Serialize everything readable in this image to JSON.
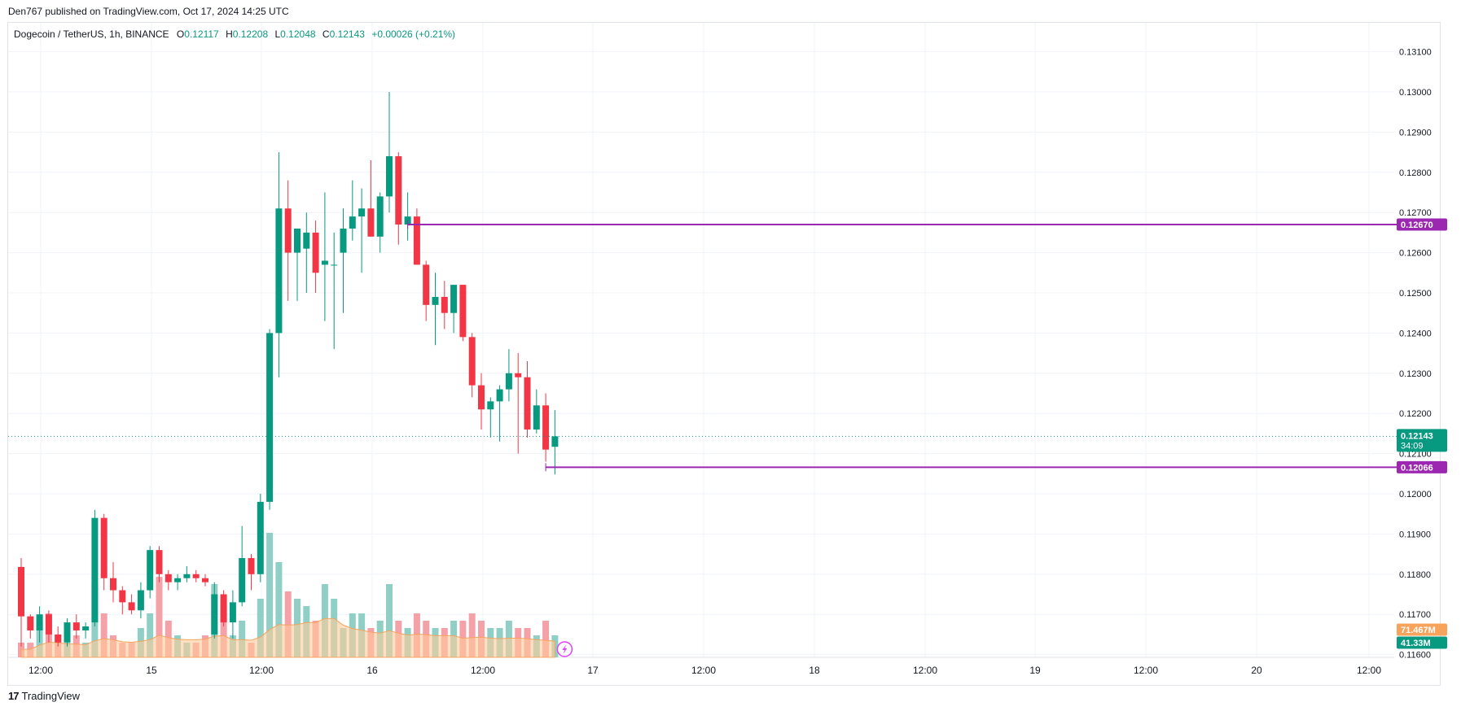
{
  "header": {
    "publisher": "Den767 published on TradingView.com, Oct 17, 2024 14:25 UTC"
  },
  "legend": {
    "symbol": "Dogecoin / TetherUS, 1h, BINANCE",
    "open_label": "O",
    "open": "0.12117",
    "high_label": "H",
    "high": "0.12208",
    "low_label": "L",
    "low": "0.12048",
    "close_label": "C",
    "close": "0.12143",
    "change": "+0.00026 (+0.21%)"
  },
  "footer": {
    "logo_glyph": "17",
    "brand": "TradingView"
  },
  "price_tags": {
    "last_price": "0.12143",
    "countdown": "34:09",
    "level_high": "0.12670",
    "level_low": "0.12066",
    "volume_ma": "71.467M",
    "volume": "41.33M"
  },
  "colors": {
    "up": "#089981",
    "down": "#f23645",
    "up_volume": "#8fcfc5",
    "down_volume": "#f5a1a8",
    "level_line": "#9c27b0",
    "volume_ma_fill": "#ffcc99",
    "grid": "#f0f3fa"
  },
  "chart_data": {
    "type": "candlestick",
    "title": "Dogecoin / TetherUS, 1h, BINANCE",
    "y_axis": {
      "range": [
        0.1158,
        0.1313
      ],
      "ticks": [
        "0.13100",
        "0.13000",
        "0.12900",
        "0.12800",
        "0.12700",
        "0.12600",
        "0.12500",
        "0.12400",
        "0.12300",
        "0.12200",
        "0.12100",
        "0.12000",
        "0.11900",
        "0.11800",
        "0.11700",
        "0.11600"
      ]
    },
    "x_axis": {
      "ticks": [
        "12:00",
        "15",
        "12:00",
        "16",
        "12:00",
        "17",
        "12:00",
        "18",
        "12:00",
        "19",
        "12:00",
        "20",
        "12:00"
      ]
    },
    "horizontal_levels": [
      0.1267,
      0.12066
    ],
    "candles_ohlc": [
      [
        0.11818,
        0.1184,
        0.1162,
        0.11695
      ],
      [
        0.11695,
        0.117,
        0.1164,
        0.1166
      ],
      [
        0.1166,
        0.1172,
        0.1163,
        0.117
      ],
      [
        0.117,
        0.1171,
        0.1163,
        0.1165
      ],
      [
        0.1165,
        0.1167,
        0.1162,
        0.1163
      ],
      [
        0.1163,
        0.1169,
        0.1162,
        0.1168
      ],
      [
        0.1168,
        0.117,
        0.1164,
        0.1166
      ],
      [
        0.1166,
        0.1168,
        0.1164,
        0.1167
      ],
      [
        0.1168,
        0.1196,
        0.1167,
        0.1194
      ],
      [
        0.1194,
        0.1195,
        0.1176,
        0.1179
      ],
      [
        0.1179,
        0.1183,
        0.1173,
        0.1176
      ],
      [
        0.1176,
        0.1177,
        0.117,
        0.1173
      ],
      [
        0.1173,
        0.1175,
        0.117,
        0.1171
      ],
      [
        0.1171,
        0.1178,
        0.1169,
        0.1176
      ],
      [
        0.1176,
        0.1187,
        0.1174,
        0.1186
      ],
      [
        0.1186,
        0.1187,
        0.1178,
        0.118
      ],
      [
        0.118,
        0.1181,
        0.1176,
        0.1178
      ],
      [
        0.1178,
        0.118,
        0.1176,
        0.1179
      ],
      [
        0.1179,
        0.1182,
        0.1178,
        0.118
      ],
      [
        0.118,
        0.1181,
        0.1178,
        0.1179
      ],
      [
        0.1179,
        0.118,
        0.1177,
        0.1178
      ],
      [
        0.1165,
        0.1178,
        0.1164,
        0.1175
      ],
      [
        0.1175,
        0.1176,
        0.1167,
        0.1168
      ],
      [
        0.1168,
        0.1176,
        0.1164,
        0.1173
      ],
      [
        0.1173,
        0.1192,
        0.1172,
        0.1184
      ],
      [
        0.1184,
        0.1185,
        0.1176,
        0.118
      ],
      [
        0.118,
        0.12,
        0.1178,
        0.1198
      ],
      [
        0.1198,
        0.1241,
        0.1196,
        0.124
      ],
      [
        0.124,
        0.1285,
        0.1229,
        0.1271
      ],
      [
        0.1271,
        0.1278,
        0.1248,
        0.126
      ],
      [
        0.126,
        0.1265,
        0.1248,
        0.1266
      ],
      [
        0.1261,
        0.127,
        0.125,
        0.1265
      ],
      [
        0.1265,
        0.1268,
        0.125,
        0.1255
      ],
      [
        0.1257,
        0.1275,
        0.1243,
        0.1258
      ],
      [
        0.1257,
        0.1265,
        0.1236,
        0.1257
      ],
      [
        0.126,
        0.1271,
        0.1245,
        0.1266
      ],
      [
        0.1266,
        0.1278,
        0.1263,
        0.1269
      ],
      [
        0.1269,
        0.1276,
        0.1255,
        0.1271
      ],
      [
        0.1271,
        0.1283,
        0.1264,
        0.1264
      ],
      [
        0.1264,
        0.1275,
        0.126,
        0.1274
      ],
      [
        0.1274,
        0.13,
        0.127,
        0.1284
      ],
      [
        0.1284,
        0.1285,
        0.1262,
        0.1267
      ],
      [
        0.1267,
        0.1275,
        0.1263,
        0.1269
      ],
      [
        0.1269,
        0.1271,
        0.1257,
        0.1257
      ],
      [
        0.1257,
        0.1258,
        0.1243,
        0.1247
      ],
      [
        0.1247,
        0.1255,
        0.1237,
        0.1249
      ],
      [
        0.1249,
        0.1253,
        0.1241,
        0.1245
      ],
      [
        0.1245,
        0.1252,
        0.124,
        0.1252
      ],
      [
        0.1252,
        0.1252,
        0.1238,
        0.1239
      ],
      [
        0.1239,
        0.124,
        0.1224,
        0.1227
      ],
      [
        0.1227,
        0.123,
        0.1216,
        0.1221
      ],
      [
        0.1221,
        0.1224,
        0.1214,
        0.1223
      ],
      [
        0.1223,
        0.1227,
        0.1213,
        0.1226
      ],
      [
        0.1226,
        0.1236,
        0.1223,
        0.123
      ],
      [
        0.123,
        0.1235,
        0.121,
        0.1229
      ],
      [
        0.1229,
        0.1233,
        0.1214,
        0.1216
      ],
      [
        0.1216,
        0.1226,
        0.1215,
        0.1222
      ],
      [
        0.1222,
        0.1225,
        0.1208,
        0.1211
      ],
      [
        0.12117,
        0.12208,
        0.12048,
        0.12143
      ]
    ],
    "volume": [
      2,
      2,
      5,
      6,
      3,
      2,
      3,
      2,
      10,
      6,
      3,
      2,
      2,
      4,
      6,
      11,
      5,
      3,
      2,
      2,
      3,
      10,
      7,
      3,
      5,
      2,
      8,
      17,
      13,
      9,
      8,
      7,
      5,
      10,
      8,
      4,
      6,
      6,
      4,
      5,
      10,
      5,
      4,
      6,
      5,
      4,
      4,
      5,
      5,
      6,
      5,
      4,
      4,
      5,
      4,
      4,
      3,
      5,
      3
    ]
  }
}
